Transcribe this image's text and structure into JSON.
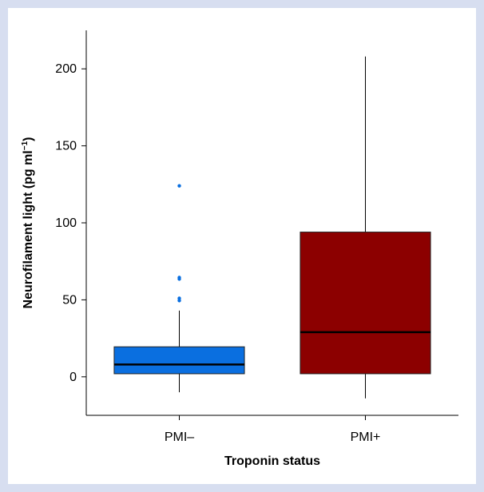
{
  "chart_data": {
    "type": "boxplot",
    "xlabel": "Troponin status",
    "ylabel_main": "Neurofilament light (pg ml",
    "ylabel_sup": "−1",
    "ylabel_close": ")",
    "ylim": [
      -25,
      225
    ],
    "yticks": [
      0,
      50,
      100,
      150,
      200
    ],
    "categories": [
      "PMI–",
      "PMI+"
    ],
    "boxes": [
      {
        "name": "PMI–",
        "color": "#0a6fe0",
        "whisker_low": -10,
        "q1": 2,
        "median": 8,
        "q3": 19.5,
        "whisker_high": 43,
        "outliers": [
          49.5,
          51,
          63.5,
          64.5,
          124
        ]
      },
      {
        "name": "PMI+",
        "color": "#8c0000",
        "whisker_low": -14,
        "q1": 2,
        "median": 29,
        "q3": 94,
        "whisker_high": 208,
        "outliers": []
      }
    ]
  }
}
